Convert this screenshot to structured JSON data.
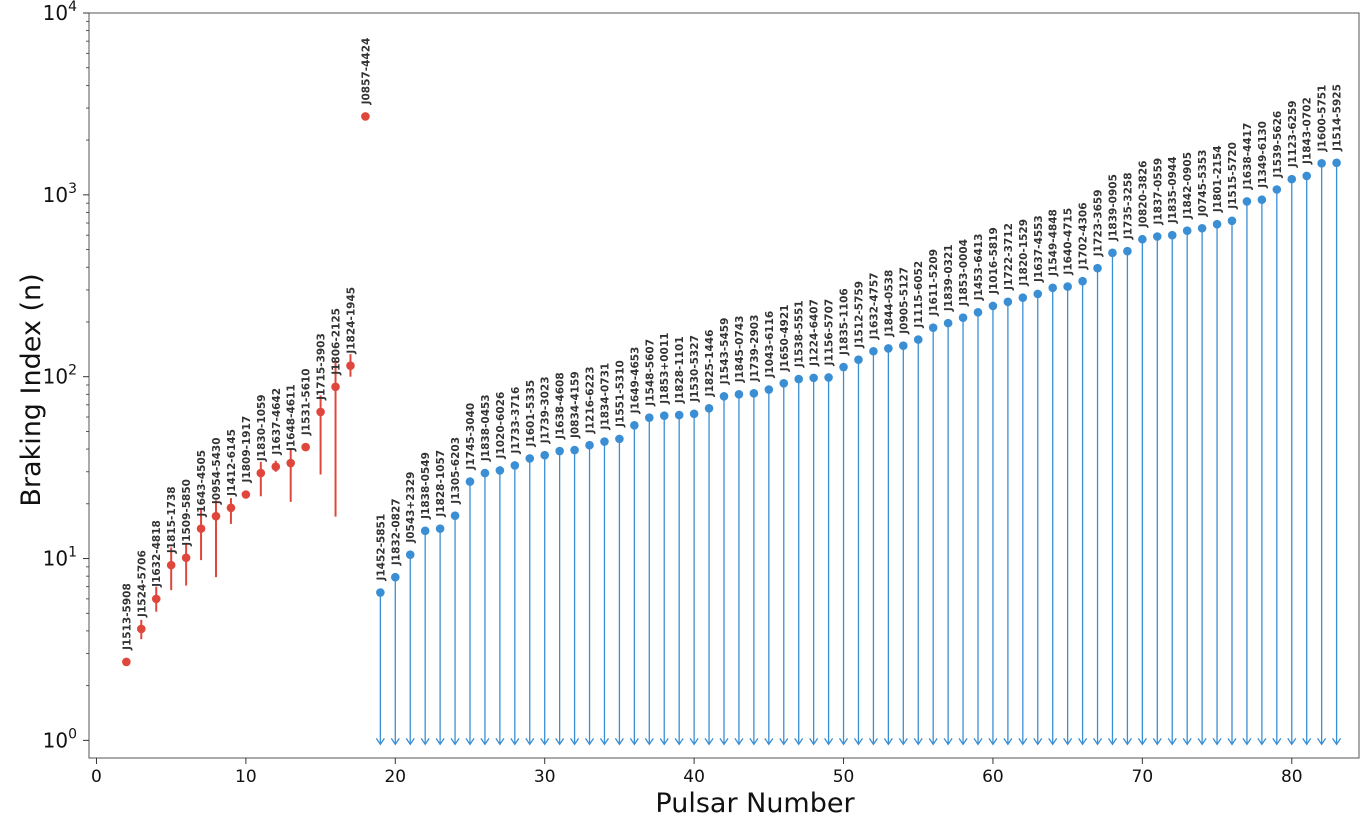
{
  "chart_data": {
    "type": "scatter",
    "xlabel": "Pulsar Number",
    "ylabel": "Braking Index (n)",
    "xlim": [
      -0.5,
      84.5
    ],
    "ylim": [
      0.8,
      10000
    ],
    "yscale": "log",
    "xticks": [
      0,
      10,
      20,
      30,
      40,
      50,
      60,
      70,
      80
    ],
    "yticks": [
      {
        "value": 1,
        "base": "10",
        "exp": "0"
      },
      {
        "value": 10,
        "base": "10",
        "exp": "1"
      },
      {
        "value": 100,
        "base": "10",
        "exp": "2"
      },
      {
        "value": 1000,
        "base": "10",
        "exp": "3"
      },
      {
        "value": 10000,
        "base": "10",
        "exp": "4"
      }
    ],
    "grid": false,
    "colors": {
      "measured": "#e0473c",
      "upper_limit": "#3a8fd4",
      "axis": "#555555"
    },
    "measured": [
      {
        "x": 2,
        "y": 2.7,
        "lo": 2.7,
        "hi": 2.7,
        "label": "J1513-5908"
      },
      {
        "x": 3,
        "y": 4.1,
        "lo": 3.6,
        "hi": 4.6,
        "label": "J1524-5706"
      },
      {
        "x": 4,
        "y": 6.0,
        "lo": 5.1,
        "hi": 7.0,
        "label": "J1632-4818"
      },
      {
        "x": 5,
        "y": 9.2,
        "lo": 6.7,
        "hi": 11.5,
        "label": "J1815-1738"
      },
      {
        "x": 6,
        "y": 10.1,
        "lo": 7.1,
        "hi": 12.2,
        "label": "J1509-5850"
      },
      {
        "x": 7,
        "y": 14.6,
        "lo": 9.8,
        "hi": 18.8,
        "label": "J1643-4505"
      },
      {
        "x": 8,
        "y": 17.1,
        "lo": 7.9,
        "hi": 20.9,
        "label": "J0954-5430"
      },
      {
        "x": 9,
        "y": 19.0,
        "lo": 15.5,
        "hi": 21.5,
        "label": "J1412-6145"
      },
      {
        "x": 10,
        "y": 22.5,
        "lo": 22.5,
        "hi": 22.5,
        "label": "J1809-1917"
      },
      {
        "x": 11,
        "y": 29.5,
        "lo": 22.0,
        "hi": 34.0,
        "label": "J1830-1059"
      },
      {
        "x": 12,
        "y": 32.0,
        "lo": 30.0,
        "hi": 34.5,
        "label": "J1637-4642"
      },
      {
        "x": 13,
        "y": 33.5,
        "lo": 20.5,
        "hi": 40.5,
        "label": "J1648-4611"
      },
      {
        "x": 14,
        "y": 41.0,
        "lo": 41.0,
        "hi": 41.0,
        "label": "J1531-5610"
      },
      {
        "x": 15,
        "y": 64.0,
        "lo": 29.0,
        "hi": 79.0,
        "label": "J1715-3903"
      },
      {
        "x": 16,
        "y": 88.0,
        "lo": 17.0,
        "hi": 123.0,
        "label": "J1806-2125"
      },
      {
        "x": 17,
        "y": 115.0,
        "lo": 100.0,
        "hi": 133.0,
        "label": "J1824-1945"
      },
      {
        "x": 18,
        "y": 2700.0,
        "lo": 2700.0,
        "hi": 2700.0,
        "label": "J0857-4424"
      }
    ],
    "upper_limits": [
      {
        "x": 19,
        "y": 6.5,
        "label": "J1452-5851"
      },
      {
        "x": 20,
        "y": 7.9,
        "label": "J1832-0827"
      },
      {
        "x": 21,
        "y": 10.5,
        "label": "J0543+2329"
      },
      {
        "x": 22,
        "y": 14.2,
        "label": "J1838-0549"
      },
      {
        "x": 23,
        "y": 14.6,
        "label": "J1828-1057"
      },
      {
        "x": 24,
        "y": 17.2,
        "label": "J1305-6203"
      },
      {
        "x": 25,
        "y": 26.5,
        "label": "J1745-3040"
      },
      {
        "x": 26,
        "y": 29.5,
        "label": "J1838-0453"
      },
      {
        "x": 27,
        "y": 30.5,
        "label": "J1020-6026"
      },
      {
        "x": 28,
        "y": 32.5,
        "label": "J1733-3716"
      },
      {
        "x": 29,
        "y": 35.5,
        "label": "J1601-5335"
      },
      {
        "x": 30,
        "y": 37.0,
        "label": "J1739-3023"
      },
      {
        "x": 31,
        "y": 39.0,
        "label": "J1638-4608"
      },
      {
        "x": 32,
        "y": 39.5,
        "label": "J0834-4159"
      },
      {
        "x": 33,
        "y": 42.0,
        "label": "J1216-6223"
      },
      {
        "x": 34,
        "y": 44.0,
        "label": "J1834-0731"
      },
      {
        "x": 35,
        "y": 45.5,
        "label": "J1551-5310"
      },
      {
        "x": 36,
        "y": 54.0,
        "label": "J1649-4653"
      },
      {
        "x": 37,
        "y": 59.5,
        "label": "J1548-5607"
      },
      {
        "x": 38,
        "y": 61.0,
        "label": "J1853+0011"
      },
      {
        "x": 39,
        "y": 61.5,
        "label": "J1828-1101"
      },
      {
        "x": 40,
        "y": 62.5,
        "label": "J1530-5327"
      },
      {
        "x": 41,
        "y": 67.0,
        "label": "J1825-1446"
      },
      {
        "x": 42,
        "y": 78.0,
        "label": "J1543-5459"
      },
      {
        "x": 43,
        "y": 80.0,
        "label": "J1845-0743"
      },
      {
        "x": 44,
        "y": 81.0,
        "label": "J1739-2903"
      },
      {
        "x": 45,
        "y": 85.0,
        "label": "J1043-6116"
      },
      {
        "x": 46,
        "y": 92.0,
        "label": "J1650-4921"
      },
      {
        "x": 47,
        "y": 97.0,
        "label": "J1538-5551"
      },
      {
        "x": 48,
        "y": 98.5,
        "label": "J1224-6407"
      },
      {
        "x": 49,
        "y": 99.0,
        "label": "J1156-5707"
      },
      {
        "x": 50,
        "y": 113.0,
        "label": "J1835-1106"
      },
      {
        "x": 51,
        "y": 124.0,
        "label": "J1512-5759"
      },
      {
        "x": 52,
        "y": 138.0,
        "label": "J1632-4757"
      },
      {
        "x": 53,
        "y": 143.0,
        "label": "J1844-0538"
      },
      {
        "x": 54,
        "y": 148.0,
        "label": "J0905-5127"
      },
      {
        "x": 55,
        "y": 160.0,
        "label": "J1115-6052"
      },
      {
        "x": 56,
        "y": 186.0,
        "label": "J1611-5209"
      },
      {
        "x": 57,
        "y": 197.0,
        "label": "J1839-0321"
      },
      {
        "x": 58,
        "y": 211.0,
        "label": "J1853-0004"
      },
      {
        "x": 59,
        "y": 226.0,
        "label": "J1453-6413"
      },
      {
        "x": 60,
        "y": 245.0,
        "label": "J1016-5819"
      },
      {
        "x": 61,
        "y": 258.0,
        "label": "J1722-3712"
      },
      {
        "x": 62,
        "y": 272.0,
        "label": "J1820-1529"
      },
      {
        "x": 63,
        "y": 285.0,
        "label": "J1637-4553"
      },
      {
        "x": 64,
        "y": 308.0,
        "label": "J1549-4848"
      },
      {
        "x": 65,
        "y": 313.0,
        "label": "J1640-4715"
      },
      {
        "x": 66,
        "y": 335.0,
        "label": "J1702-4306"
      },
      {
        "x": 67,
        "y": 395.0,
        "label": "J1723-3659"
      },
      {
        "x": 68,
        "y": 480.0,
        "label": "J1839-0905"
      },
      {
        "x": 69,
        "y": 490.0,
        "label": "J1735-3258"
      },
      {
        "x": 70,
        "y": 570.0,
        "label": "J0820-3826"
      },
      {
        "x": 71,
        "y": 590.0,
        "label": "J1837-0559"
      },
      {
        "x": 72,
        "y": 600.0,
        "label": "J1835-0944"
      },
      {
        "x": 73,
        "y": 635.0,
        "label": "J1842-0905"
      },
      {
        "x": 74,
        "y": 655.0,
        "label": "J0745-5353"
      },
      {
        "x": 75,
        "y": 690.0,
        "label": "J1801-2154"
      },
      {
        "x": 76,
        "y": 720.0,
        "label": "J1515-5720"
      },
      {
        "x": 77,
        "y": 920.0,
        "label": "J1638-4417"
      },
      {
        "x": 78,
        "y": 940.0,
        "label": "J1349-6130"
      },
      {
        "x": 79,
        "y": 1070.0,
        "label": "J1539-5626"
      },
      {
        "x": 80,
        "y": 1220.0,
        "label": "J1123-6259"
      },
      {
        "x": 81,
        "y": 1270.0,
        "label": "J1843-0702"
      },
      {
        "x": 82,
        "y": 1490.0,
        "label": "J1600-5751"
      },
      {
        "x": 83,
        "y": 1500.0,
        "label": "J1514-5925"
      }
    ]
  }
}
